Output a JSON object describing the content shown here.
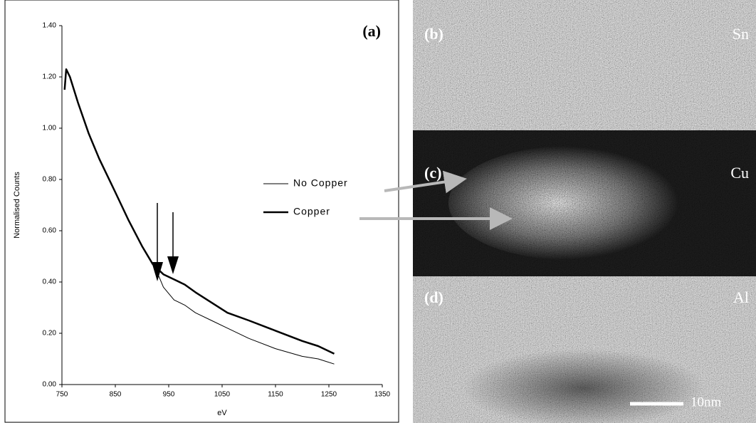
{
  "chart_data": {
    "type": "line",
    "annotation": "(a)",
    "x_label": "eV",
    "y_label": "Normalised Counts",
    "x": [
      755,
      758,
      765,
      780,
      800,
      820,
      850,
      875,
      900,
      920,
      930,
      940,
      960,
      980,
      1000,
      1030,
      1060,
      1100,
      1150,
      1200,
      1230,
      1260
    ],
    "series": [
      {
        "name": "No Copper",
        "color": "#000000",
        "line_width": 1,
        "values": [
          1.15,
          1.23,
          1.2,
          1.1,
          0.98,
          0.88,
          0.75,
          0.64,
          0.54,
          0.47,
          0.43,
          0.38,
          0.33,
          0.31,
          0.28,
          0.25,
          0.22,
          0.18,
          0.14,
          0.11,
          0.1,
          0.08
        ]
      },
      {
        "name": "Copper",
        "color": "#000000",
        "line_width": 2.5,
        "values": [
          1.15,
          1.23,
          1.2,
          1.1,
          0.98,
          0.88,
          0.75,
          0.64,
          0.54,
          0.47,
          0.45,
          0.43,
          0.41,
          0.39,
          0.36,
          0.32,
          0.28,
          0.25,
          0.21,
          0.17,
          0.15,
          0.12
        ]
      }
    ],
    "xlim": [
      750,
      1350
    ],
    "xticks": [
      750,
      850,
      950,
      1050,
      1150,
      1250,
      1350
    ],
    "ylim": [
      0,
      1.4
    ],
    "yticks": [
      {
        "value": 0,
        "label": "0.00"
      },
      {
        "value": 0.2,
        "label": "0.20"
      },
      {
        "value": 0.4,
        "label": "0.40"
      },
      {
        "value": 0.6,
        "label": "0.60"
      },
      {
        "value": 0.8,
        "label": "0.80"
      },
      {
        "value": 1.0,
        "label": "1.00"
      },
      {
        "value": 1.2,
        "label": "1.20"
      },
      {
        "value": 1.4,
        "label": "1.40"
      }
    ],
    "grid": false
  },
  "panels": [
    {
      "label": "(b)",
      "element": "Sn"
    },
    {
      "label": "(c)",
      "element": "Cu"
    },
    {
      "label": "(d)",
      "element": "Al"
    }
  ],
  "scale_bar": "10nm"
}
